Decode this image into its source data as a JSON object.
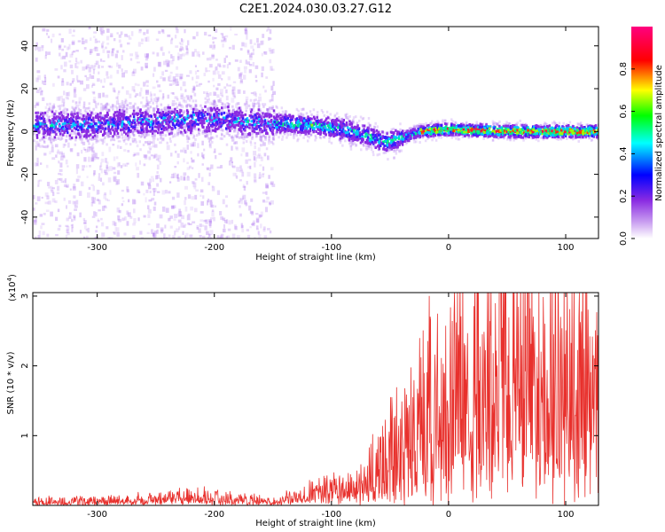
{
  "title": "C2E1.2024.030.03.27.G12",
  "colors": {
    "snr_line": "#e8302c",
    "colormap": [
      "#ffffff",
      "#8a2be2",
      "#0000ff",
      "#00ffff",
      "#00ff00",
      "#ffff00",
      "#ff0000",
      "#ff007f"
    ]
  },
  "chart_data": [
    {
      "type": "heatmap",
      "xlabel": "Height of straight line (km)",
      "ylabel": "Frequency (Hz)",
      "xlim": [
        -355,
        128
      ],
      "ylim": [
        -50,
        49
      ],
      "xticks": [
        -300,
        -200,
        -100,
        0,
        100
      ],
      "yticks": [
        -40,
        -20,
        0,
        20,
        40
      ],
      "colorbar": {
        "label": "Normalized spectral amplitude",
        "range": [
          0,
          1
        ],
        "ticks": [
          "0.0",
          "0.2",
          "0.4",
          "0.6",
          "0.8"
        ]
      },
      "ridge": {
        "description_points": [
          {
            "x": -350,
            "y": 3
          },
          {
            "x": -300,
            "y": 3
          },
          {
            "x": -250,
            "y": 5
          },
          {
            "x": -210,
            "y": 6
          },
          {
            "x": -160,
            "y": 4
          },
          {
            "x": -120,
            "y": 3
          },
          {
            "x": -90,
            "y": 1
          },
          {
            "x": -70,
            "y": -2
          },
          {
            "x": -55,
            "y": -5
          },
          {
            "x": -40,
            "y": -3
          },
          {
            "x": -25,
            "y": 0
          },
          {
            "x": 0,
            "y": 1
          },
          {
            "x": 50,
            "y": 0
          },
          {
            "x": 125,
            "y": 0
          }
        ]
      }
    },
    {
      "type": "line",
      "xlabel": "Height of straight line (km)",
      "ylabel": "SNR (10 * v/v)",
      "yscale_label": "(x10",
      "yscale_exp": "4",
      "yscale_close": ")",
      "xlim": [
        -355,
        128
      ],
      "ylim": [
        0,
        30500
      ],
      "xticks": [
        -300,
        -200,
        -100,
        0,
        100
      ],
      "yticks": [
        1,
        2,
        3
      ],
      "series": [
        {
          "envelope": [
            {
              "x": -355,
              "y": 600
            },
            {
              "x": -300,
              "y": 700
            },
            {
              "x": -250,
              "y": 900
            },
            {
              "x": -215,
              "y": 1400
            },
            {
              "x": -180,
              "y": 900
            },
            {
              "x": -150,
              "y": 700
            },
            {
              "x": -120,
              "y": 1600
            },
            {
              "x": -100,
              "y": 2200
            },
            {
              "x": -80,
              "y": 2600
            },
            {
              "x": -60,
              "y": 5500
            },
            {
              "x": -40,
              "y": 9000
            },
            {
              "x": -20,
              "y": 13500
            },
            {
              "x": 0,
              "y": 16000
            },
            {
              "x": 20,
              "y": 17500
            },
            {
              "x": 40,
              "y": 19000
            },
            {
              "x": 60,
              "y": 20500
            },
            {
              "x": 80,
              "y": 19500
            },
            {
              "x": 100,
              "y": 18000
            },
            {
              "x": 128,
              "y": 17000
            }
          ]
        }
      ]
    }
  ]
}
